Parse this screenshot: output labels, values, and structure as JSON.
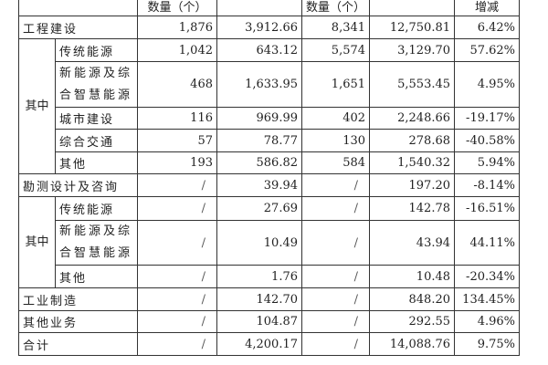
{
  "header": {
    "count_label_1": "数量（个）",
    "count_label_2": "数量（个）",
    "change_label": "增减"
  },
  "rows": {
    "engineering": {
      "label": "工程建设",
      "c1": "1,876",
      "a1": "3,912.66",
      "c2": "8,341",
      "a2": "12,750.81",
      "chg": "6.42%"
    },
    "eng_group_label": "其中",
    "eng_traditional": {
      "label": "传统能源",
      "c1": "1,042",
      "a1": "643.12",
      "c2": "5,574",
      "a2": "3,129.70",
      "chg": "57.62%"
    },
    "eng_new_energy": {
      "label": "新能源及综合智慧能源",
      "c1": "468",
      "a1": "1,633.95",
      "c2": "1,651",
      "a2": "5,553.45",
      "chg": "4.95%"
    },
    "eng_urban": {
      "label": "城市建设",
      "c1": "116",
      "a1": "969.99",
      "c2": "402",
      "a2": "2,248.66",
      "chg": "-19.17%"
    },
    "eng_transport": {
      "label": "综合交通",
      "c1": "57",
      "a1": "78.77",
      "c2": "130",
      "a2": "278.68",
      "chg": "-40.58%"
    },
    "eng_other": {
      "label": "其他",
      "c1": "193",
      "a1": "586.82",
      "c2": "584",
      "a2": "1,540.32",
      "chg": "5.94%"
    },
    "survey": {
      "label": "勘测设计及咨询",
      "c1": "/",
      "a1": "39.94",
      "c2": "/",
      "a2": "197.20",
      "chg": "-8.14%"
    },
    "survey_group_label": "其中",
    "survey_traditional": {
      "label": "传统能源",
      "c1": "/",
      "a1": "27.69",
      "c2": "/",
      "a2": "142.78",
      "chg": "-16.51%"
    },
    "survey_new_energy": {
      "label": "新能源及综合智慧能源",
      "c1": "/",
      "a1": "10.49",
      "c2": "/",
      "a2": "43.94",
      "chg": "44.11%"
    },
    "survey_other": {
      "label": "其他",
      "c1": "/",
      "a1": "1.76",
      "c2": "/",
      "a2": "10.48",
      "chg": "-20.34%"
    },
    "industrial": {
      "label": "工业制造",
      "c1": "/",
      "a1": "142.70",
      "c2": "/",
      "a2": "848.20",
      "chg": "134.45%"
    },
    "other_business": {
      "label": "其他业务",
      "c1": "/",
      "a1": "104.87",
      "c2": "/",
      "a2": "292.55",
      "chg": "4.96%"
    },
    "total": {
      "label": "合计",
      "c1": "/",
      "a1": "4,200.17",
      "c2": "/",
      "a2": "14,088.76",
      "chg": "9.75%"
    }
  }
}
